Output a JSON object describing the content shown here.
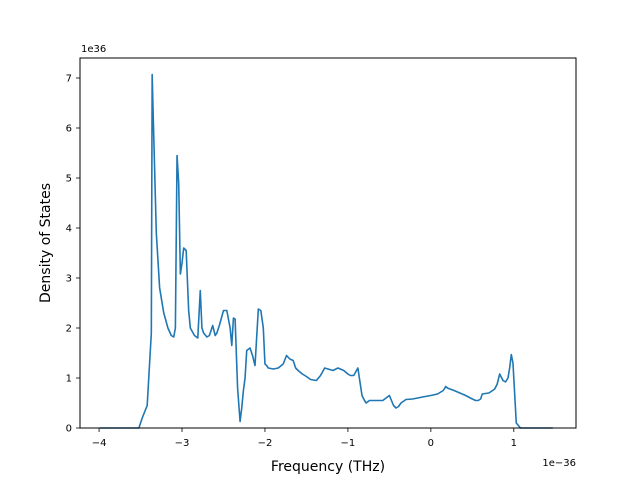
{
  "chart_data": {
    "type": "line",
    "title": "",
    "xlabel": "Frequency (THz)",
    "ylabel": "Density of States",
    "x_offset_text": "1e−36",
    "y_offset_text": "1e36",
    "x_scale_exponent": -36,
    "y_scale_exponent": 36,
    "xlim": [
      -4.23,
      1.75
    ],
    "ylim": [
      0,
      7.4
    ],
    "xticks": [
      -4,
      -3,
      -2,
      -1,
      0,
      1
    ],
    "xtick_labels": [
      "−4",
      "−3",
      "−2",
      "−1",
      "0",
      "1"
    ],
    "yticks": [
      0,
      1,
      2,
      3,
      4,
      5,
      6,
      7
    ],
    "ytick_labels": [
      "0",
      "1",
      "2",
      "3",
      "4",
      "5",
      "6",
      "7"
    ],
    "grid": false,
    "line_color": "#1f77b4",
    "series": [
      {
        "x": [
          -3.99,
          -3.52,
          -3.48,
          -3.42,
          -3.37,
          -3.36,
          -3.345,
          -3.31,
          -3.27,
          -3.22,
          -3.17,
          -3.13,
          -3.1,
          -3.08,
          -3.06,
          -3.04,
          -3.02,
          -3.0,
          -2.98,
          -2.95,
          -2.92,
          -2.9,
          -2.85,
          -2.81,
          -2.78,
          -2.76,
          -2.74,
          -2.7,
          -2.67,
          -2.63,
          -2.6,
          -2.58,
          -2.55,
          -2.5,
          -2.46,
          -2.42,
          -2.4,
          -2.38,
          -2.36,
          -2.33,
          -2.3,
          -2.28,
          -2.26,
          -2.24,
          -2.22,
          -2.18,
          -2.15,
          -2.12,
          -2.08,
          -2.05,
          -2.02,
          -2.0,
          -1.98,
          -1.96,
          -1.9,
          -1.84,
          -1.78,
          -1.74,
          -1.7,
          -1.66,
          -1.63,
          -1.6,
          -1.55,
          -1.5,
          -1.45,
          -1.38,
          -1.33,
          -1.28,
          -1.24,
          -1.18,
          -1.12,
          -1.05,
          -1.0,
          -0.97,
          -0.93,
          -0.88,
          -0.83,
          -0.8,
          -0.78,
          -0.74,
          -0.7,
          -0.65,
          -0.58,
          -0.5,
          -0.45,
          -0.42,
          -0.39,
          -0.36,
          -0.3,
          -0.22,
          -0.1,
          0.0,
          0.08,
          0.15,
          0.18,
          0.2,
          0.23,
          0.28,
          0.35,
          0.42,
          0.5,
          0.54,
          0.57,
          0.6,
          0.62,
          0.7,
          0.77,
          0.8,
          0.83,
          0.87,
          0.9,
          0.93,
          0.95,
          0.97,
          0.99,
          1.03,
          1.08,
          1.2,
          1.47
        ],
        "y": [
          0.0,
          0.0,
          0.2,
          0.45,
          1.9,
          7.07,
          6.1,
          3.9,
          2.8,
          2.3,
          2.0,
          1.85,
          1.82,
          2.0,
          5.45,
          4.9,
          3.08,
          3.3,
          3.6,
          3.55,
          2.35,
          2.0,
          1.85,
          1.8,
          2.75,
          2.0,
          1.9,
          1.82,
          1.85,
          2.05,
          1.85,
          1.9,
          2.05,
          2.35,
          2.35,
          2.0,
          1.65,
          2.2,
          2.18,
          0.8,
          0.13,
          0.4,
          0.75,
          1.0,
          1.55,
          1.6,
          1.45,
          1.25,
          2.38,
          2.35,
          2.0,
          1.28,
          1.25,
          1.2,
          1.18,
          1.2,
          1.28,
          1.45,
          1.38,
          1.35,
          1.2,
          1.15,
          1.08,
          1.03,
          0.97,
          0.95,
          1.05,
          1.2,
          1.18,
          1.15,
          1.2,
          1.15,
          1.08,
          1.05,
          1.05,
          1.2,
          0.65,
          0.55,
          0.5,
          0.55,
          0.55,
          0.55,
          0.55,
          0.65,
          0.45,
          0.4,
          0.43,
          0.5,
          0.57,
          0.58,
          0.62,
          0.65,
          0.68,
          0.75,
          0.83,
          0.8,
          0.78,
          0.75,
          0.7,
          0.65,
          0.58,
          0.55,
          0.55,
          0.58,
          0.68,
          0.7,
          0.78,
          0.88,
          1.08,
          0.95,
          0.92,
          1.0,
          1.2,
          1.47,
          1.3,
          0.1,
          0.0,
          0.0,
          0.0
        ]
      }
    ]
  }
}
